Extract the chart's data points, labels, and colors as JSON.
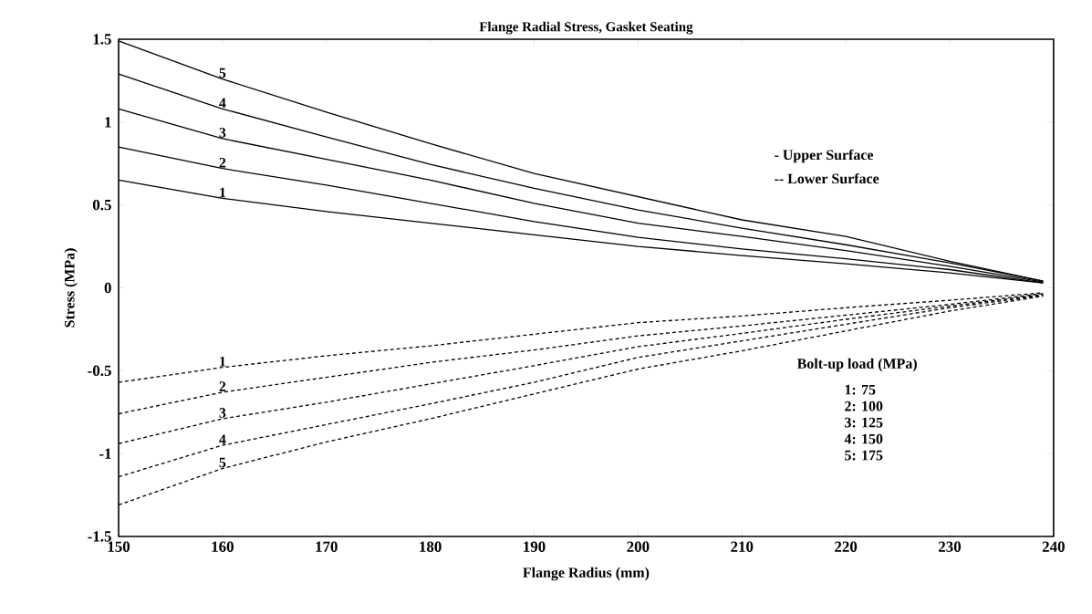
{
  "chart_data": {
    "type": "line",
    "title": "Flange Radial Stress, Gasket Seating",
    "xlabel": "Flange Radius  (mm)",
    "ylabel": "Stress (MPa)",
    "x": [
      150,
      160,
      170,
      180,
      190,
      200,
      210,
      220,
      230,
      239
    ],
    "series": [
      {
        "name": "1",
        "color": "#000000",
        "line_style": "solid",
        "values": [
          0.65,
          0.54,
          0.46,
          0.39,
          0.32,
          0.25,
          0.195,
          0.145,
          0.09,
          0.03
        ]
      },
      {
        "name": "2",
        "color": "#000000",
        "line_style": "solid",
        "values": [
          0.85,
          0.72,
          0.62,
          0.51,
          0.4,
          0.305,
          0.235,
          0.175,
          0.11,
          0.03
        ]
      },
      {
        "name": "3",
        "color": "#000000",
        "line_style": "solid",
        "values": [
          1.08,
          0.9,
          0.775,
          0.65,
          0.51,
          0.39,
          0.31,
          0.225,
          0.13,
          0.035
        ]
      },
      {
        "name": "4",
        "color": "#000000",
        "line_style": "solid",
        "values": [
          1.29,
          1.08,
          0.91,
          0.745,
          0.6,
          0.47,
          0.36,
          0.26,
          0.15,
          0.04
        ]
      },
      {
        "name": "5",
        "color": "#000000",
        "line_style": "solid",
        "values": [
          1.49,
          1.26,
          1.06,
          0.87,
          0.69,
          0.55,
          0.41,
          0.31,
          0.16,
          0.04
        ]
      },
      {
        "name": "1",
        "color": "#000000",
        "line_style": "dashed",
        "values": [
          -0.57,
          -0.48,
          -0.41,
          -0.35,
          -0.28,
          -0.21,
          -0.17,
          -0.12,
          -0.075,
          -0.03
        ]
      },
      {
        "name": "2",
        "color": "#000000",
        "line_style": "dashed",
        "values": [
          -0.76,
          -0.63,
          -0.54,
          -0.45,
          -0.375,
          -0.29,
          -0.23,
          -0.165,
          -0.1,
          -0.035
        ]
      },
      {
        "name": "3",
        "color": "#000000",
        "line_style": "dashed",
        "values": [
          -0.94,
          -0.79,
          -0.69,
          -0.58,
          -0.47,
          -0.355,
          -0.275,
          -0.19,
          -0.11,
          -0.04
        ]
      },
      {
        "name": "4",
        "color": "#000000",
        "line_style": "dashed",
        "values": [
          -1.14,
          -0.95,
          -0.825,
          -0.7,
          -0.57,
          -0.42,
          -0.32,
          -0.22,
          -0.12,
          -0.045
        ]
      },
      {
        "name": "5",
        "color": "#000000",
        "line_style": "dashed",
        "values": [
          -1.31,
          -1.09,
          -0.93,
          -0.79,
          -0.64,
          -0.49,
          -0.38,
          -0.26,
          -0.14,
          -0.05
        ]
      }
    ],
    "xlim": [
      150,
      240
    ],
    "ylim": [
      -1.5,
      1.5
    ],
    "xticks": [
      150,
      160,
      170,
      180,
      190,
      200,
      210,
      220,
      230,
      240
    ],
    "yticks": [
      -1.5,
      -1,
      -0.5,
      0,
      0.5,
      1,
      1.5
    ],
    "annotations": [
      "- Upper Surface",
      "-- Lower Surface",
      "Bolt-up load (MPa)",
      "1: 75",
      "2: 100",
      "3: 125",
      "4: 150",
      "5: 175"
    ],
    "grid": false,
    "marker": "none"
  }
}
